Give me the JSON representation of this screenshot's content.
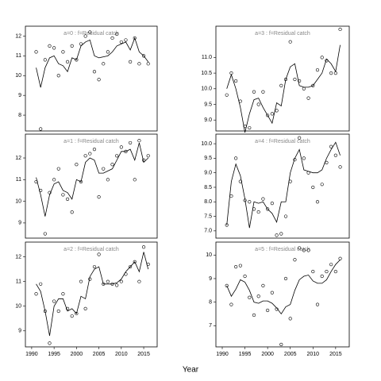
{
  "xlabel": "Year",
  "chart_data": [
    {
      "type": "scatter",
      "title": "a=0 : f=Residual catch",
      "x": [
        1991,
        1992,
        1993,
        1994,
        1995,
        1996,
        1997,
        1998,
        1999,
        2000,
        2001,
        2002,
        2003,
        2004,
        2005,
        2006,
        2007,
        2008,
        2009,
        2010,
        2011,
        2012,
        2013,
        2014,
        2015,
        2016
      ],
      "xlim": [
        1988.6,
        2018
      ],
      "ylim": [
        7.2,
        12.5
      ],
      "yticks": [
        8,
        9,
        10,
        11,
        12
      ],
      "series": [
        {
          "mode": "points",
          "color": "#000000",
          "values": [
            11.2,
            7.3,
            10.8,
            11.5,
            11.4,
            10.0,
            11.2,
            10.7,
            11.5,
            10.8,
            11.6,
            12.0,
            12.2,
            10.2,
            9.8,
            10.6,
            11.2,
            11.9,
            12.1,
            11.7,
            11.8,
            10.7,
            11.9,
            10.6,
            11.0,
            10.6
          ]
        },
        {
          "mode": "line",
          "color": "#000000",
          "values": [
            10.4,
            9.4,
            10.4,
            10.9,
            11.0,
            10.6,
            10.5,
            10.2,
            10.9,
            10.8,
            11.5,
            11.7,
            11.8,
            11.0,
            10.9,
            10.95,
            11.0,
            11.2,
            11.5,
            11.6,
            11.7,
            11.3,
            11.9,
            11.2,
            11.0,
            10.7
          ]
        }
      ]
    },
    {
      "type": "scatter",
      "title": "a=1 : f=Residual catch",
      "x": [
        1991,
        1992,
        1993,
        1994,
        1995,
        1996,
        1997,
        1998,
        1999,
        2000,
        2001,
        2002,
        2003,
        2004,
        2005,
        2006,
        2007,
        2008,
        2009,
        2010,
        2011,
        2012,
        2013,
        2014,
        2015,
        2016
      ],
      "xlim": [
        1988.6,
        2018
      ],
      "ylim": [
        8.3,
        13.1
      ],
      "yticks": [
        9,
        10,
        11,
        12
      ],
      "series": [
        {
          "mode": "points",
          "color": "#000000",
          "values": [
            10.9,
            10.5,
            8.5,
            10.4,
            11.0,
            11.5,
            10.3,
            10.1,
            9.5,
            11.7,
            10.9,
            12.1,
            12.2,
            12.4,
            10.2,
            11.5,
            11.0,
            11.7,
            12.1,
            12.5,
            12.3,
            12.7,
            11.0,
            12.8,
            11.9,
            12.1
          ]
        },
        {
          "mode": "line",
          "color": "#000000",
          "values": [
            11.1,
            10.3,
            9.3,
            10.3,
            10.8,
            10.9,
            10.5,
            10.4,
            10.1,
            11.0,
            10.9,
            11.8,
            12.0,
            11.9,
            11.3,
            11.3,
            11.4,
            11.5,
            11.9,
            12.3,
            12.3,
            12.4,
            11.9,
            12.7,
            11.8,
            12.0
          ]
        }
      ]
    },
    {
      "type": "scatter",
      "title": "a=2 : f=Residual catch",
      "x": [
        1991,
        1992,
        1993,
        1994,
        1995,
        1996,
        1997,
        1998,
        1999,
        2000,
        2001,
        2002,
        2003,
        2004,
        2005,
        2006,
        2007,
        2008,
        2009,
        2010,
        2011,
        2012,
        2013,
        2014,
        2015,
        2016
      ],
      "xlim": [
        1988.6,
        2018
      ],
      "xticks": [
        1990,
        1995,
        2000,
        2005,
        2010,
        2015
      ],
      "ylim": [
        8.35,
        12.6
      ],
      "yticks": [
        9,
        10,
        11,
        12
      ],
      "series": [
        {
          "mode": "points",
          "color": "#000000",
          "values": [
            10.5,
            10.9,
            9.8,
            8.5,
            10.2,
            9.8,
            10.5,
            9.9,
            9.6,
            9.7,
            11.0,
            9.9,
            11.1,
            11.6,
            12.1,
            10.9,
            11.0,
            10.9,
            10.85,
            11.0,
            11.3,
            11.6,
            11.8,
            11.0,
            12.4,
            11.7
          ]
        },
        {
          "mode": "line",
          "color": "#000000",
          "values": [
            10.9,
            10.6,
            9.8,
            8.8,
            10.0,
            10.3,
            10.3,
            9.8,
            9.9,
            9.7,
            10.4,
            10.3,
            11.2,
            11.5,
            11.6,
            10.9,
            10.9,
            10.9,
            10.95,
            11.1,
            11.4,
            11.6,
            11.8,
            11.4,
            12.2,
            11.5
          ]
        }
      ]
    },
    {
      "type": "scatter",
      "title": "a=3 : f=Residual catch",
      "x": [
        1991,
        1992,
        1993,
        1994,
        1995,
        1996,
        1997,
        1998,
        1999,
        2000,
        2001,
        2002,
        2003,
        2004,
        2005,
        2006,
        2007,
        2008,
        2009,
        2010,
        2011,
        2012,
        2013,
        2014,
        2015,
        2016
      ],
      "xlim": [
        1988.6,
        2018
      ],
      "ylim": [
        8.65,
        12.0
      ],
      "yticks": [
        {
          "value": 9,
          "label": "9.0"
        },
        9.5,
        {
          "value": 10,
          "label": "10.0"
        },
        10.5,
        {
          "value": 11,
          "label": "11.0"
        }
      ],
      "series": [
        {
          "mode": "points",
          "color": "#000000",
          "values": [
            9.8,
            10.5,
            10.25,
            9.6,
            8.8,
            8.75,
            9.9,
            9.5,
            9.9,
            9.15,
            9.2,
            9.3,
            10.1,
            10.3,
            11.5,
            10.3,
            10.25,
            10.0,
            9.7,
            10.1,
            10.6,
            11.0,
            10.9,
            10.5,
            10.5,
            11.9
          ]
        },
        {
          "mode": "line",
          "color": "#000000",
          "values": [
            10.0,
            10.45,
            10.0,
            9.4,
            8.6,
            9.2,
            9.65,
            9.7,
            9.4,
            9.15,
            8.9,
            9.55,
            9.45,
            10.3,
            10.7,
            10.8,
            10.1,
            10.05,
            10.05,
            10.1,
            10.3,
            10.5,
            10.95,
            10.8,
            10.55,
            11.4
          ]
        }
      ]
    },
    {
      "type": "scatter",
      "title": "a=4 : f=Residual catch",
      "x": [
        1991,
        1992,
        1993,
        1994,
        1995,
        1996,
        1997,
        1998,
        1999,
        2000,
        2001,
        2002,
        2003,
        2004,
        2005,
        2006,
        2007,
        2008,
        2009,
        2010,
        2011,
        2012,
        2013,
        2014,
        2015,
        2016
      ],
      "xlim": [
        1988.6,
        2018
      ],
      "ylim": [
        6.75,
        10.33
      ],
      "yticks": [
        {
          "value": 7,
          "label": "7.0"
        },
        7.5,
        {
          "value": 8,
          "label": "8.0"
        },
        8.5,
        {
          "value": 9,
          "label": "9.0"
        },
        9.5,
        {
          "value": 10,
          "label": "10.0"
        }
      ],
      "series": [
        {
          "mode": "points",
          "color": "#000000",
          "values": [
            7.2,
            8.2,
            9.5,
            8.7,
            8.05,
            8.0,
            7.75,
            7.65,
            8.1,
            7.75,
            7.95,
            6.85,
            6.9,
            7.5,
            8.7,
            9.45,
            10.2,
            9.5,
            9.0,
            8.5,
            8.0,
            8.6,
            9.35,
            9.9,
            9.6,
            9.2
          ]
        },
        {
          "mode": "line",
          "color": "#000000",
          "values": [
            7.2,
            8.7,
            9.3,
            8.9,
            8.1,
            7.1,
            8.0,
            7.95,
            8.0,
            7.75,
            7.6,
            7.3,
            8.0,
            8.0,
            9.0,
            9.5,
            9.8,
            9.1,
            9.05,
            9.0,
            9.0,
            9.1,
            9.5,
            9.8,
            10.05,
            9.6
          ]
        }
      ]
    },
    {
      "type": "scatter",
      "title": "a=5 : f=Residual catch",
      "x": [
        1991,
        1992,
        1993,
        1994,
        1995,
        1996,
        1997,
        1998,
        1999,
        2000,
        2001,
        2002,
        2003,
        2004,
        2005,
        2006,
        2007,
        2008,
        2009,
        2010,
        2011,
        2012,
        2013,
        2014,
        2015,
        2016
      ],
      "xlim": [
        1988.6,
        2018
      ],
      "xticks": [
        1990,
        1995,
        2000,
        2005,
        2010,
        2015
      ],
      "ylim": [
        6.1,
        10.55
      ],
      "yticks": [
        7,
        8,
        9,
        10
      ],
      "series": [
        {
          "mode": "points",
          "color": "#000000",
          "values": [
            8.7,
            7.9,
            9.5,
            9.55,
            9.1,
            8.2,
            7.45,
            8.25,
            8.7,
            7.65,
            8.4,
            7.7,
            6.2,
            9.0,
            7.3,
            9.8,
            10.3,
            10.2,
            10.2,
            9.3,
            7.9,
            9.1,
            9.3,
            9.6,
            9.3,
            9.85
          ]
        },
        {
          "mode": "line",
          "color": "#000000",
          "values": [
            8.7,
            8.25,
            8.55,
            8.95,
            8.85,
            8.5,
            8.0,
            7.95,
            8.05,
            8.05,
            7.95,
            7.75,
            7.5,
            7.8,
            7.9,
            8.5,
            8.95,
            9.1,
            9.15,
            8.9,
            8.8,
            8.8,
            8.95,
            9.3,
            9.6,
            9.8
          ]
        }
      ]
    }
  ]
}
